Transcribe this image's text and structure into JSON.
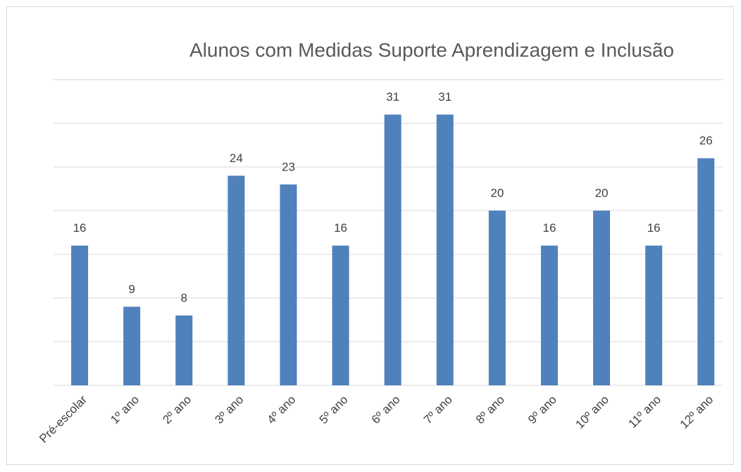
{
  "chart_data": {
    "type": "bar",
    "title": "Alunos com Medidas Suporte Aprendizagem e Inclusão",
    "categories": [
      "Pré-escolar",
      "1º ano",
      "2º ano",
      "3º ano",
      "4º ano",
      "5º ano",
      "6º ano",
      "7º ano",
      "8º ano",
      "9º ano",
      "10º ano",
      "11º ano",
      "12º ano"
    ],
    "values": [
      16,
      9,
      8,
      24,
      23,
      16,
      31,
      31,
      20,
      16,
      20,
      16,
      26
    ],
    "color": "#4f81bd",
    "ylim": [
      0,
      35
    ],
    "yticks": [
      0,
      5,
      10,
      15,
      20,
      25,
      30,
      35
    ],
    "grid": true
  }
}
